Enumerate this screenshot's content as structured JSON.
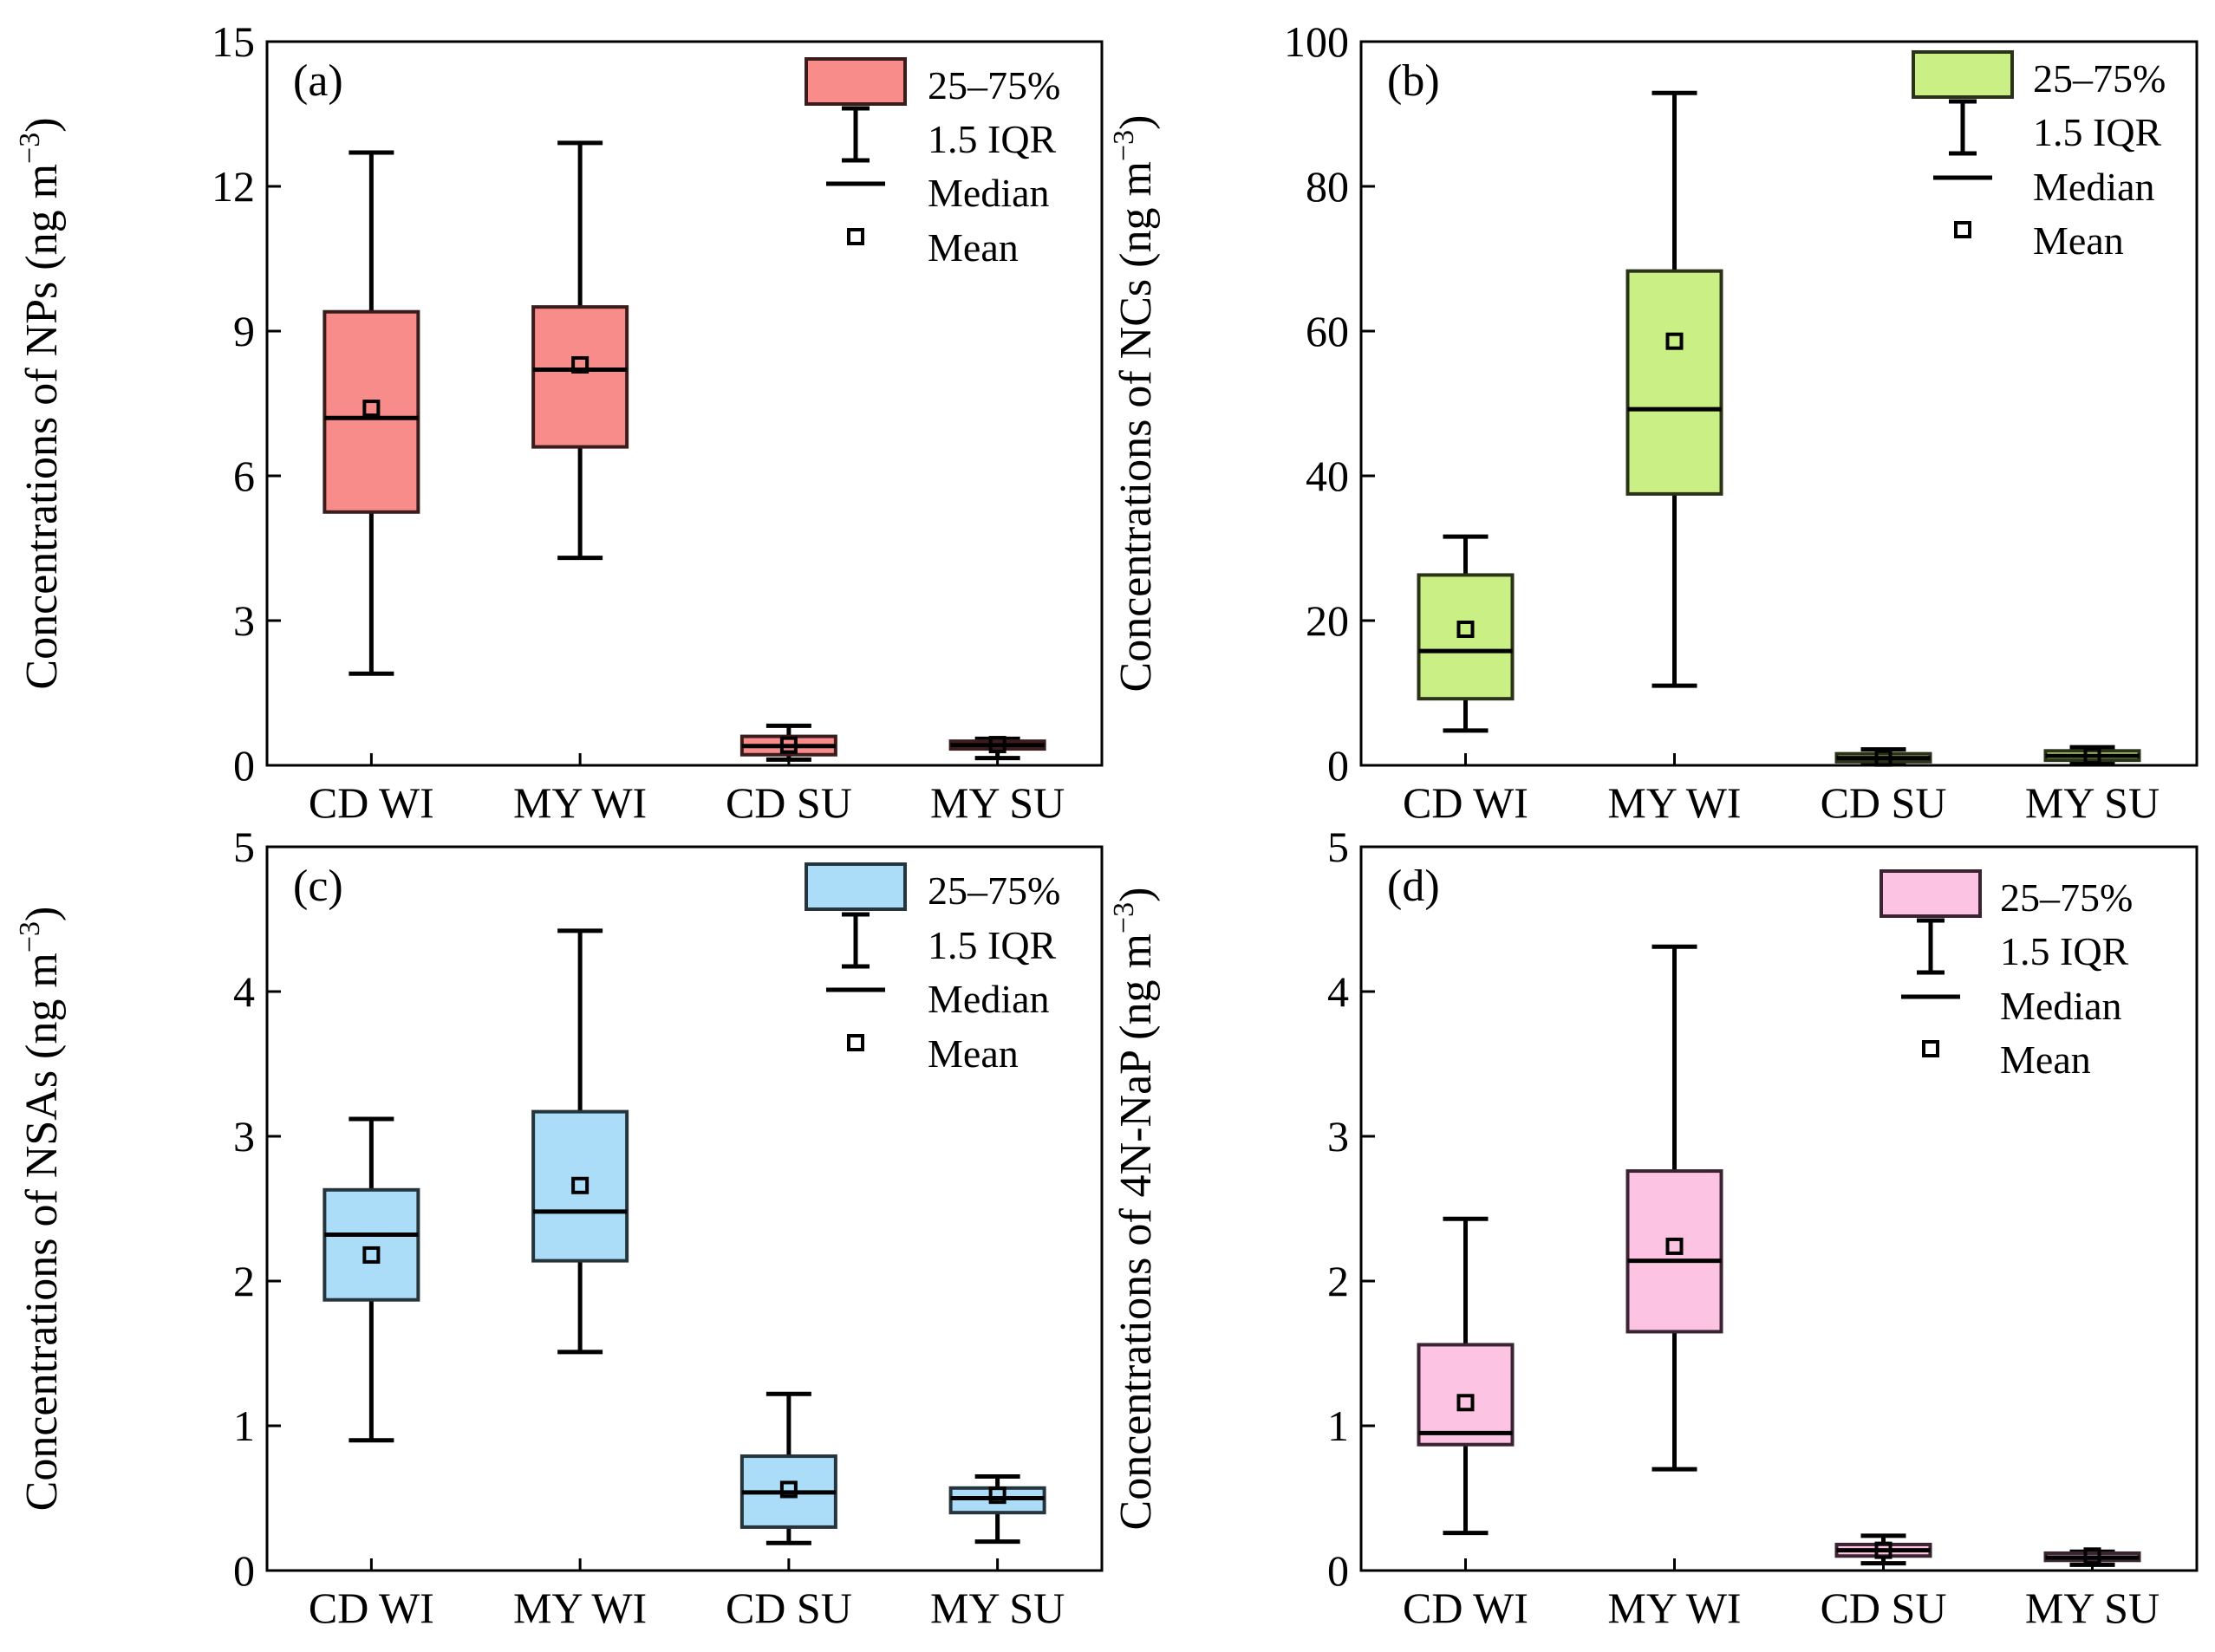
{
  "figure": {
    "panels": 4
  },
  "chart_data": [
    {
      "type": "box",
      "panel_label": "(a)",
      "ylabel": "Concentrations of NPs (ng m",
      "ylabel_sup": "−3",
      "ylabel_close": ")",
      "ylim": [
        0,
        15
      ],
      "yticks": [
        0,
        3,
        6,
        9,
        12,
        15
      ],
      "categories": [
        "CD WI",
        "MY WI",
        "CD SU",
        "MY SU"
      ],
      "color": "#f88c8a",
      "stroke": "#3a1c1c",
      "boxes": [
        {
          "category": "CD WI",
          "whisker_low": 1.9,
          "q1": 5.25,
          "median": 7.2,
          "q3": 9.4,
          "whisker_high": 12.7,
          "mean": 7.4
        },
        {
          "category": "MY WI",
          "whisker_low": 4.3,
          "q1": 6.6,
          "median": 8.2,
          "q3": 9.5,
          "whisker_high": 12.9,
          "mean": 8.3
        },
        {
          "category": "CD SU",
          "whisker_low": 0.12,
          "q1": 0.22,
          "median": 0.4,
          "q3": 0.6,
          "whisker_high": 0.82,
          "mean": 0.42
        },
        {
          "category": "MY SU",
          "whisker_low": 0.15,
          "q1": 0.34,
          "median": 0.42,
          "q3": 0.5,
          "whisker_high": 0.55,
          "mean": 0.43
        }
      ],
      "legend": [
        {
          "kind": "box",
          "label": "25–75%"
        },
        {
          "kind": "whisker",
          "label": "1.5 IQR"
        },
        {
          "kind": "median",
          "label": "Median"
        },
        {
          "kind": "mean",
          "label": "Mean"
        }
      ]
    },
    {
      "type": "box",
      "panel_label": "(b)",
      "ylabel": "Concentrations of NCs (ng m",
      "ylabel_sup": "−3",
      "ylabel_close": ")",
      "ylim": [
        0,
        100
      ],
      "yticks": [
        0,
        20,
        40,
        60,
        80,
        100
      ],
      "categories": [
        "CD WI",
        "MY WI",
        "CD SU",
        "MY SU"
      ],
      "color": "#c9ef85",
      "stroke": "#2a3318",
      "boxes": [
        {
          "category": "CD WI",
          "whisker_low": 4.8,
          "q1": 9.2,
          "median": 15.8,
          "q3": 26.3,
          "whisker_high": 31.6,
          "mean": 18.8
        },
        {
          "category": "MY WI",
          "whisker_low": 11.0,
          "q1": 37.5,
          "median": 49.2,
          "q3": 68.3,
          "whisker_high": 92.9,
          "mean": 58.6
        },
        {
          "category": "CD SU",
          "whisker_low": 0.2,
          "q1": 0.5,
          "median": 1.0,
          "q3": 1.6,
          "whisker_high": 2.2,
          "mean": 1.0
        },
        {
          "category": "MY SU",
          "whisker_low": 0.3,
          "q1": 0.7,
          "median": 1.3,
          "q3": 2.0,
          "whisker_high": 2.5,
          "mean": 1.3
        }
      ],
      "legend": [
        {
          "kind": "box",
          "label": "25–75%"
        },
        {
          "kind": "whisker",
          "label": "1.5 IQR"
        },
        {
          "kind": "median",
          "label": "Median"
        },
        {
          "kind": "mean",
          "label": "Mean"
        }
      ]
    },
    {
      "type": "box",
      "panel_label": "(c)",
      "ylabel": "Concentrations of NSAs (ng m",
      "ylabel_sup": "−3",
      "ylabel_close": ")",
      "ylim": [
        0,
        5
      ],
      "yticks": [
        0,
        1,
        2,
        3,
        4,
        5
      ],
      "categories": [
        "CD WI",
        "MY WI",
        "CD SU",
        "MY SU"
      ],
      "color": "#abdcf8",
      "stroke": "#26343c",
      "boxes": [
        {
          "category": "CD WI",
          "whisker_low": 0.9,
          "q1": 1.87,
          "median": 2.32,
          "q3": 2.63,
          "whisker_high": 3.12,
          "mean": 2.18
        },
        {
          "category": "MY WI",
          "whisker_low": 1.51,
          "q1": 2.14,
          "median": 2.48,
          "q3": 3.17,
          "whisker_high": 4.42,
          "mean": 2.66
        },
        {
          "category": "CD SU",
          "whisker_low": 0.19,
          "q1": 0.3,
          "median": 0.54,
          "q3": 0.79,
          "whisker_high": 1.22,
          "mean": 0.56
        },
        {
          "category": "MY SU",
          "whisker_low": 0.2,
          "q1": 0.4,
          "median": 0.5,
          "q3": 0.57,
          "whisker_high": 0.65,
          "mean": 0.52
        }
      ],
      "legend": [
        {
          "kind": "box",
          "label": "25–75%"
        },
        {
          "kind": "whisker",
          "label": "1.5 IQR"
        },
        {
          "kind": "median",
          "label": "Median"
        },
        {
          "kind": "mean",
          "label": "Mean"
        }
      ]
    },
    {
      "type": "box",
      "panel_label": "(d)",
      "ylabel": "Concentrations of 4N-NaP (ng m",
      "ylabel_sup": "−3",
      "ylabel_close": ")",
      "ylim": [
        0,
        5
      ],
      "yticks": [
        0,
        1,
        2,
        3,
        4,
        5
      ],
      "categories": [
        "CD WI",
        "MY WI",
        "CD SU",
        "MY SU"
      ],
      "color": "#fcc3e3",
      "stroke": "#3a2431",
      "boxes": [
        {
          "category": "CD WI",
          "whisker_low": 0.26,
          "q1": 0.87,
          "median": 0.95,
          "q3": 1.56,
          "whisker_high": 2.43,
          "mean": 1.16
        },
        {
          "category": "MY WI",
          "whisker_low": 0.7,
          "q1": 1.65,
          "median": 2.14,
          "q3": 2.76,
          "whisker_high": 4.31,
          "mean": 2.24
        },
        {
          "category": "CD SU",
          "whisker_low": 0.05,
          "q1": 0.1,
          "median": 0.14,
          "q3": 0.18,
          "whisker_high": 0.24,
          "mean": 0.14
        },
        {
          "category": "MY SU",
          "whisker_low": 0.04,
          "q1": 0.07,
          "median": 0.09,
          "q3": 0.12,
          "whisker_high": 0.13,
          "mean": 0.1
        }
      ],
      "legend": [
        {
          "kind": "box",
          "label": "25–75%"
        },
        {
          "kind": "whisker",
          "label": "1.5 IQR"
        },
        {
          "kind": "median",
          "label": "Median"
        },
        {
          "kind": "mean",
          "label": "Mean"
        }
      ]
    }
  ]
}
